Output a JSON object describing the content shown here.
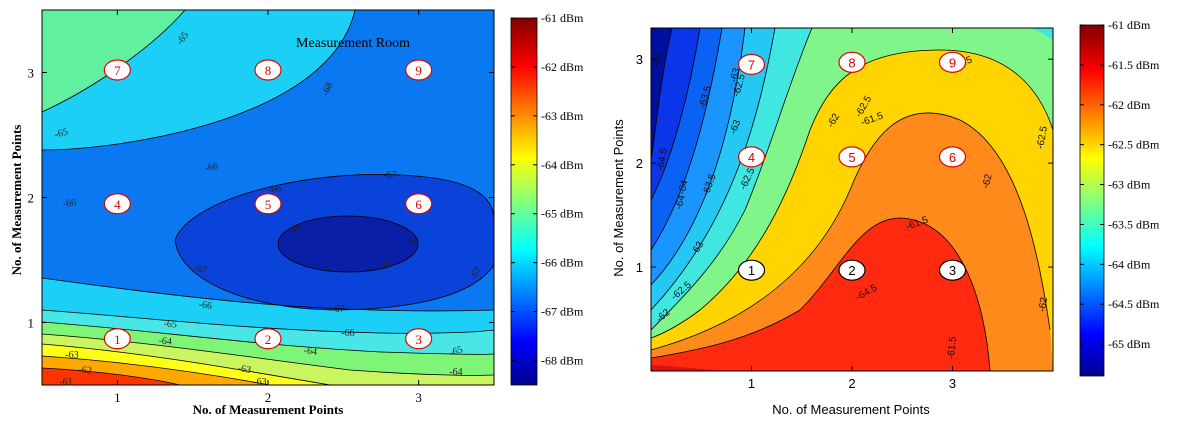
{
  "chart_data": [
    {
      "type": "heatmap",
      "subtype": "filled-contour",
      "title": "",
      "annotation": "Measurement Room",
      "xlabel": "No. of Measurement Points",
      "ylabel": "No. of Measurement Points",
      "xticks": [
        "1",
        "2",
        "3"
      ],
      "yticks": [
        "1",
        "2",
        "3"
      ],
      "xlim": [
        0.5,
        3.5
      ],
      "ylim": [
        0.5,
        3.5
      ],
      "colorbar": {
        "min": -68.5,
        "max": -61,
        "tick_values": [
          -61,
          -62,
          -63,
          -64,
          -65,
          -66,
          -67,
          -68
        ],
        "tick_labels": [
          "-61 dBm",
          "-62 dBm",
          "-63 dBm",
          "-64 dBm",
          "-65 dBm",
          "-66 dBm",
          "-67 dBm",
          "-68 dBm"
        ]
      },
      "contour_labels": [
        "-65",
        "-65",
        "-66",
        "-66",
        "-66",
        "-67",
        "-67",
        "-67",
        "-67",
        "-68",
        "-68",
        "-68",
        "-67",
        "-66",
        "-66",
        "-65",
        "-65",
        "-64",
        "-64",
        "-63",
        "-63",
        "-62",
        "-63",
        "-64",
        "-61"
      ],
      "points": [
        {
          "label": "1",
          "x": 1,
          "y": 0.87
        },
        {
          "label": "2",
          "x": 2,
          "y": 0.87
        },
        {
          "label": "3",
          "x": 3,
          "y": 0.87
        },
        {
          "label": "4",
          "x": 1,
          "y": 1.95
        },
        {
          "label": "5",
          "x": 2,
          "y": 1.95
        },
        {
          "label": "6",
          "x": 3,
          "y": 1.95
        },
        {
          "label": "7",
          "x": 1,
          "y": 3.02
        },
        {
          "label": "8",
          "x": 2,
          "y": 3.02
        },
        {
          "label": "9",
          "x": 3,
          "y": 3.02
        }
      ],
      "grid": false,
      "legend": "colorbar-right"
    },
    {
      "type": "heatmap",
      "subtype": "filled-contour",
      "title": "",
      "xlabel": "No. of Measurement Points",
      "ylabel": "No. of Measurement Points",
      "xticks": [
        "1",
        "2",
        "3"
      ],
      "yticks": [
        "1",
        "2",
        "3"
      ],
      "xlim": [
        0,
        4
      ],
      "ylim": [
        0,
        3.3
      ],
      "colorbar": {
        "min": -65.4,
        "max": -61,
        "tick_values": [
          -61,
          -61.5,
          -62,
          -62.5,
          -63,
          -63.5,
          -64,
          -64.5,
          -65
        ],
        "tick_labels": [
          "-61 dBm",
          "-61.5 dBm",
          "-62 dBm",
          "-62.5 dBm",
          "-63 dBm",
          "-63.5 dBm",
          "-64 dBm",
          "-64.5 dBm",
          "-65 dBm"
        ]
      },
      "contour_labels": [
        "-64",
        "-63.5",
        "-63",
        "-62.5",
        "-62.5",
        "-63",
        "-62",
        "-62.5",
        "-63.5",
        "-64",
        "-64.5",
        "-63",
        "-62.5",
        "-62",
        "-61.5",
        "-61.5",
        "-61.5",
        "-62",
        "-62.5",
        "-62",
        "-61.5",
        "-64",
        "-64.5"
      ],
      "points": [
        {
          "label": "1",
          "x": 1,
          "y": 0.97,
          "style": "white"
        },
        {
          "label": "2",
          "x": 2,
          "y": 0.97,
          "style": "white"
        },
        {
          "label": "3",
          "x": 3,
          "y": 0.97,
          "style": "white"
        },
        {
          "label": "4",
          "x": 1,
          "y": 2.06
        },
        {
          "label": "5",
          "x": 2,
          "y": 2.06
        },
        {
          "label": "6",
          "x": 3,
          "y": 2.06
        },
        {
          "label": "7",
          "x": 1,
          "y": 2.95
        },
        {
          "label": "8",
          "x": 2,
          "y": 2.97
        },
        {
          "label": "9",
          "x": 3,
          "y": 2.97
        }
      ],
      "grid": false,
      "legend": "colorbar-right"
    }
  ]
}
